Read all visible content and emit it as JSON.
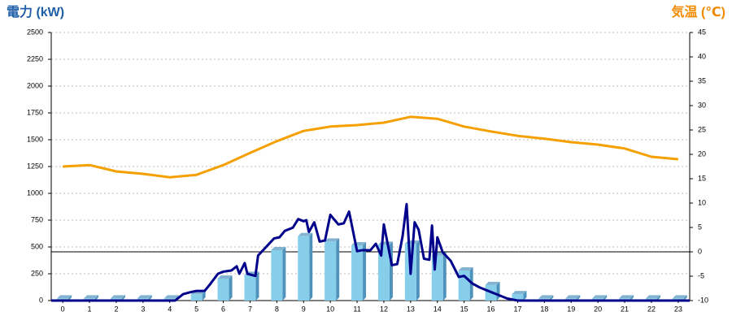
{
  "chart_data": {
    "type": "combo",
    "title": "電力 (kW)",
    "y2_title": "気温 (℃)",
    "xlim": [
      -0.43,
      23.43
    ],
    "xticks": [
      0,
      1,
      2,
      3,
      4,
      5,
      6,
      7,
      8,
      9,
      10,
      11,
      12,
      13,
      14,
      15,
      16,
      17,
      18,
      19,
      20,
      21,
      22,
      23
    ],
    "ylim": [
      0,
      2500
    ],
    "yticks": [
      0,
      250,
      500,
      750,
      1000,
      1250,
      1500,
      1750,
      2000,
      2250,
      2500
    ],
    "y2lim": [
      -10,
      45
    ],
    "y2ticks": [
      -10,
      -5,
      0,
      5,
      10,
      15,
      20,
      25,
      30,
      35,
      40,
      45
    ],
    "grid": true,
    "reference_line": {
      "axis": "y2",
      "value": 0
    },
    "series": [
      {
        "type": "bar",
        "color": "#87ceeb",
        "side_color": "#4f93bd",
        "x": [
          0,
          1,
          2,
          3,
          4,
          5,
          6,
          7,
          8,
          9,
          10,
          11,
          12,
          13,
          14,
          15,
          16,
          17,
          18,
          19,
          20,
          21,
          22,
          23
        ],
        "values": [
          20,
          20,
          20,
          20,
          20,
          60,
          205,
          240,
          470,
          600,
          550,
          515,
          520,
          530,
          420,
          280,
          145,
          60,
          20,
          20,
          20,
          20,
          20,
          20
        ]
      },
      {
        "type": "line",
        "color": "#00008b",
        "x": [
          -0.43,
          4.2,
          4.5,
          4.8,
          5.0,
          5.3,
          5.5,
          5.8,
          6.0,
          6.3,
          6.5,
          6.6,
          6.8,
          6.9,
          7.2,
          7.3,
          7.6,
          7.9,
          8.1,
          8.3,
          8.6,
          8.8,
          9.0,
          9.1,
          9.2,
          9.4,
          9.6,
          9.8,
          10.0,
          10.3,
          10.5,
          10.7,
          11.0,
          11.2,
          11.5,
          11.7,
          11.9,
          12.0,
          12.3,
          12.5,
          12.7,
          12.85,
          13.0,
          13.15,
          13.3,
          13.5,
          13.7,
          13.8,
          13.9,
          14.0,
          14.2,
          14.5,
          14.8,
          15.0,
          15.3,
          15.6,
          16.0,
          16.3,
          16.6,
          17.0,
          23.43
        ],
        "values": [
          0,
          0,
          60,
          80,
          90,
          90,
          150,
          250,
          270,
          280,
          320,
          250,
          350,
          250,
          230,
          420,
          500,
          580,
          590,
          650,
          680,
          760,
          740,
          750,
          640,
          730,
          550,
          560,
          800,
          710,
          720,
          830,
          460,
          470,
          470,
          530,
          420,
          710,
          330,
          340,
          600,
          900,
          250,
          730,
          660,
          390,
          380,
          700,
          290,
          590,
          450,
          370,
          220,
          230,
          160,
          120,
          80,
          50,
          20,
          0,
          0
        ]
      },
      {
        "type": "line",
        "axis": "y2",
        "color": "#f5a000",
        "x": [
          0,
          1,
          2,
          3,
          4,
          5,
          6,
          7,
          8,
          9,
          10,
          11,
          12,
          13,
          14,
          15,
          16,
          17,
          18,
          19,
          20,
          21,
          22,
          23
        ],
        "values": [
          17.5,
          17.8,
          16.5,
          16,
          15.3,
          15.8,
          17.8,
          20.3,
          22.7,
          24.8,
          25.7,
          26,
          26.5,
          27.7,
          27.3,
          25.7,
          24.7,
          23.8,
          23.2,
          22.5,
          22,
          21.2,
          19.5,
          19
        ]
      }
    ]
  }
}
